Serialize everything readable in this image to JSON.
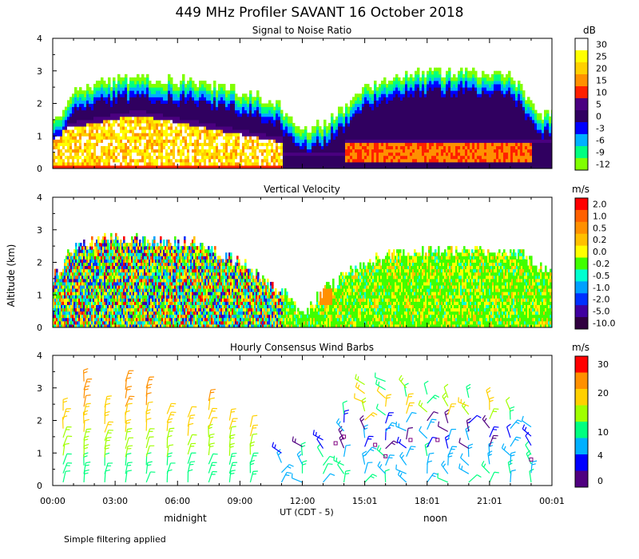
{
  "figure": {
    "title": "449 MHz Profiler SAVANT 16 October 2018",
    "ylabel": "Altitude (km)",
    "xlabel_center": "UT (CDT - 5)",
    "midnight_label": "midnight",
    "noon_label": "noon",
    "footnote": "Simple filtering applied",
    "x_ticks": [
      "00:00",
      "03:00",
      "06:00",
      "09:00",
      "12:00",
      "15:01",
      "18:01",
      "21:01",
      "00:01"
    ]
  },
  "chart_data": [
    {
      "type": "heatmap",
      "title": "Signal to Noise Ratio",
      "units": "dB",
      "ylabel": "Altitude (km)",
      "ylim": [
        0,
        4
      ],
      "y_ticks": [
        "0",
        "1",
        "2",
        "3",
        "4"
      ],
      "xlim_hours": [
        0,
        24
      ],
      "colorbar_labels": [
        "30",
        "25",
        "20",
        "15",
        "10",
        "5",
        "0",
        "-3",
        "-6",
        "-9",
        "-12"
      ],
      "colorbar_colors": [
        "#ffffff",
        "#ffff00",
        "#ffd000",
        "#ff9000",
        "#ff2000",
        "#4a0080",
        "#300060",
        "#0000ff",
        "#00b0ff",
        "#00ff80",
        "#80ff00"
      ],
      "echo_top_km": [
        {
          "t": 0.0,
          "z": 1.4
        },
        {
          "t": 1.0,
          "z": 2.3
        },
        {
          "t": 3.0,
          "z": 2.7
        },
        {
          "t": 5.0,
          "z": 2.7
        },
        {
          "t": 7.0,
          "z": 2.6
        },
        {
          "t": 9.0,
          "z": 2.3
        },
        {
          "t": 10.5,
          "z": 2.1
        },
        {
          "t": 12.0,
          "z": 1.1
        },
        {
          "t": 13.0,
          "z": 1.3
        },
        {
          "t": 15.0,
          "z": 2.4
        },
        {
          "t": 17.0,
          "z": 2.9
        },
        {
          "t": 20.0,
          "z": 2.9
        },
        {
          "t": 22.0,
          "z": 2.8
        },
        {
          "t": 23.5,
          "z": 1.6
        }
      ]
    },
    {
      "type": "heatmap",
      "title": "Vertical Velocity",
      "units": "m/s",
      "ylabel": "Altitude (km)",
      "ylim": [
        0,
        4
      ],
      "y_ticks": [
        "0",
        "1",
        "2",
        "3",
        "4"
      ],
      "xlim_hours": [
        0,
        24
      ],
      "colorbar_labels": [
        "2.0",
        "1.0",
        "0.5",
        "0.2",
        "0.0",
        "-0.2",
        "-0.5",
        "-1.0",
        "-2.0",
        "-5.0",
        "-10.0"
      ],
      "colorbar_colors": [
        "#ff0000",
        "#ff6000",
        "#ff9000",
        "#ffc000",
        "#ffff00",
        "#40ff00",
        "#00ffd0",
        "#00a0ff",
        "#0030ff",
        "#4000a0",
        "#300040"
      ],
      "echo_top_km": [
        {
          "t": 0.0,
          "z": 1.5
        },
        {
          "t": 1.0,
          "z": 2.4
        },
        {
          "t": 3.0,
          "z": 2.7
        },
        {
          "t": 5.0,
          "z": 2.6
        },
        {
          "t": 7.0,
          "z": 2.5
        },
        {
          "t": 9.0,
          "z": 1.9
        },
        {
          "t": 11.0,
          "z": 1.0
        },
        {
          "t": 12.0,
          "z": 0.3
        },
        {
          "t": 13.0,
          "z": 1.1
        },
        {
          "t": 15.0,
          "z": 1.9
        },
        {
          "t": 17.0,
          "z": 2.3
        },
        {
          "t": 20.0,
          "z": 2.3
        },
        {
          "t": 22.5,
          "z": 2.2
        },
        {
          "t": 23.5,
          "z": 1.7
        }
      ]
    },
    {
      "type": "scatter",
      "title": "Hourly Consensus Wind Barbs",
      "units": "m/s",
      "ylabel": "Altitude (km)",
      "ylim": [
        0,
        4
      ],
      "y_ticks": [
        "0",
        "1",
        "2",
        "3",
        "4"
      ],
      "xlim_hours": [
        0,
        24
      ],
      "colorbar_labels": [
        "30",
        "20",
        "10",
        "4",
        "0"
      ],
      "colorbar_colors": [
        "#ff0000",
        "#ff9000",
        "#ffd000",
        "#a0ff00",
        "#00ff80",
        "#00b0ff",
        "#0000ff",
        "#500080"
      ],
      "barb_hours": [
        0.5,
        1.5,
        2.5,
        3.5,
        4.5,
        5.5,
        6.5,
        7.5,
        8.5,
        9.5,
        11.0,
        12.0,
        13.0,
        14.0,
        15.0,
        16.0,
        17.0,
        18.0,
        19.0,
        20.0,
        21.0,
        22.0,
        23.0
      ],
      "barb_top_km": [
        2.3,
        3.2,
        2.4,
        3.2,
        3.0,
        2.2,
        2.1,
        2.6,
        2.0,
        1.8,
        1.0,
        1.2,
        1.4,
        2.2,
        3.1,
        3.2,
        3.0,
        2.8,
        2.7,
        2.7,
        2.6,
        2.3,
        1.8
      ]
    }
  ]
}
